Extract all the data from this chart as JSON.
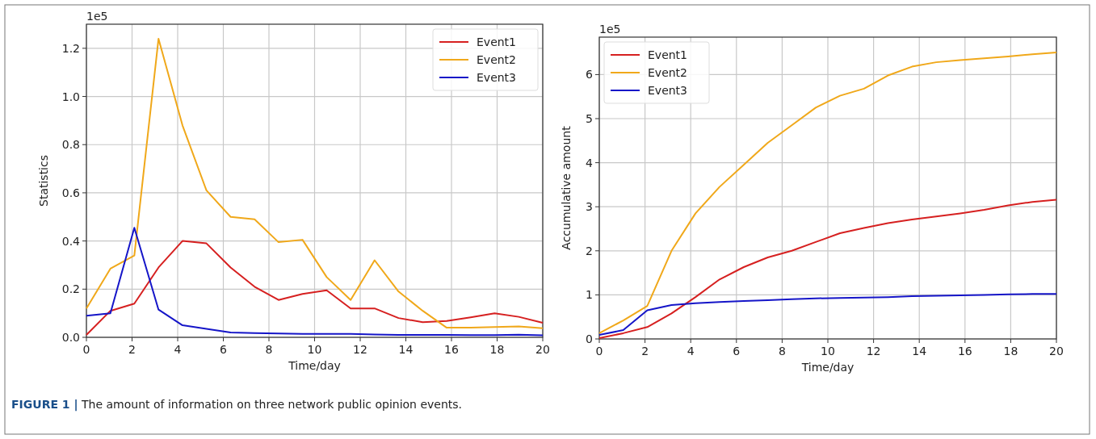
{
  "chart_data": [
    {
      "type": "line",
      "xlabel": "Time/day",
      "ylabel": "Statistics",
      "annotations": [
        "1e5",
        "FIGURE 1 | The amount of information on three network public opinion events."
      ],
      "x": [
        0,
        1.05,
        2.1,
        3.16,
        4.21,
        5.26,
        6.32,
        7.37,
        8.42,
        9.47,
        10.53,
        11.58,
        12.63,
        13.68,
        14.74,
        15.79,
        16.84,
        17.89,
        18.95,
        20
      ],
      "series": [
        {
          "name": "Event1",
          "color": "#d62020",
          "values": [
            0.01,
            0.11,
            0.14,
            0.29,
            0.4,
            0.39,
            0.29,
            0.21,
            0.155,
            0.18,
            0.195,
            0.12,
            0.12,
            0.08,
            0.063,
            0.068,
            0.083,
            0.1,
            0.085,
            0.06
          ]
        },
        {
          "name": "Event2",
          "color": "#f0a81a",
          "values": [
            0.12,
            0.285,
            0.34,
            1.24,
            0.88,
            0.61,
            0.5,
            0.49,
            0.395,
            0.405,
            0.25,
            0.155,
            0.32,
            0.19,
            0.11,
            0.04,
            0.04,
            0.043,
            0.045,
            0.038
          ]
        },
        {
          "name": "Event3",
          "color": "#1515c8",
          "values": [
            0.09,
            0.1,
            0.455,
            0.115,
            0.05,
            0.035,
            0.02,
            0.018,
            0.016,
            0.014,
            0.014,
            0.014,
            0.012,
            0.01,
            0.01,
            0.01,
            0.009,
            0.009,
            0.011,
            0.008
          ]
        }
      ],
      "xlim": [
        0,
        20
      ],
      "xticks": [
        0,
        2,
        4,
        6,
        8,
        10,
        12,
        14,
        16,
        18,
        20
      ],
      "ylim": [
        0,
        1.3
      ],
      "yticks": [
        {
          "value": 0,
          "label": "0.0"
        },
        0.2,
        0.4,
        0.6,
        0.8,
        {
          "value": 1,
          "label": "1.0"
        },
        1.2
      ],
      "grid": true,
      "legend": "top right",
      "marker": "none",
      "line_style": "solid"
    },
    {
      "type": "line",
      "xlabel": "Time/day",
      "ylabel": "Accumulative amount",
      "annotations": [
        "1e5"
      ],
      "x": [
        0,
        1.05,
        2.1,
        3.16,
        4.21,
        5.26,
        6.32,
        7.37,
        8.42,
        9.47,
        10.53,
        11.58,
        12.63,
        13.68,
        14.74,
        15.79,
        16.84,
        17.89,
        18.95,
        20
      ],
      "series": [
        {
          "name": "Event1",
          "color": "#d62020",
          "values": [
            0.02,
            0.13,
            0.27,
            0.58,
            0.95,
            1.35,
            1.63,
            1.85,
            2.0,
            2.2,
            2.4,
            2.52,
            2.63,
            2.71,
            2.78,
            2.85,
            2.93,
            3.03,
            3.11,
            3.16
          ]
        },
        {
          "name": "Event2",
          "color": "#f0a81a",
          "values": [
            0.13,
            0.42,
            0.75,
            2.0,
            2.85,
            3.45,
            3.95,
            4.45,
            4.85,
            5.25,
            5.52,
            5.68,
            5.98,
            6.18,
            6.28,
            6.33,
            6.37,
            6.41,
            6.46,
            6.5
          ]
        },
        {
          "name": "Event3",
          "color": "#1515c8",
          "values": [
            0.09,
            0.2,
            0.65,
            0.77,
            0.81,
            0.84,
            0.86,
            0.88,
            0.9,
            0.92,
            0.93,
            0.94,
            0.95,
            0.97,
            0.98,
            0.99,
            1.0,
            1.01,
            1.02,
            1.02
          ]
        }
      ],
      "xlim": [
        0,
        20
      ],
      "xticks": [
        0,
        2,
        4,
        6,
        8,
        10,
        12,
        14,
        16,
        18,
        20
      ],
      "ylim": [
        0,
        6.85
      ],
      "yticks": [
        0,
        1,
        2,
        3,
        4,
        5,
        6
      ],
      "grid": true,
      "legend": "top left",
      "marker": "none",
      "line_style": "solid"
    }
  ]
}
